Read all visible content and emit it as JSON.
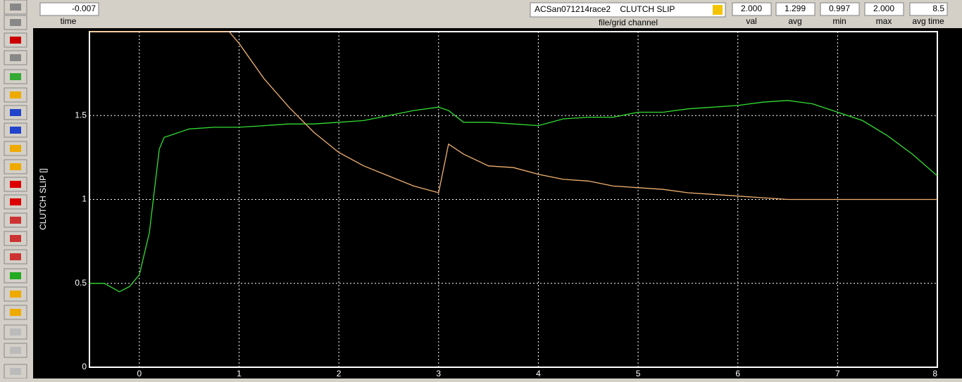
{
  "header": {
    "time": {
      "value": "-0.007",
      "label": "time"
    },
    "channel": {
      "value": "ACSan071214race2    CLUTCH SLIP",
      "label": "file/grid channel"
    },
    "val": {
      "value": "2.000",
      "label": "val"
    },
    "avg": {
      "value": "1.299",
      "label": "avg"
    },
    "min": {
      "value": "0.997",
      "label": "min"
    },
    "max": {
      "value": "2.000",
      "label": "max"
    },
    "avg_time": {
      "value": "8.5",
      "label": "avg time"
    }
  },
  "chart_data": {
    "type": "line",
    "y_label": "CLUTCH SLIP []",
    "xlim": [
      -0.5,
      8
    ],
    "ylim": [
      0,
      2
    ],
    "xticks": [
      0,
      1,
      2,
      3,
      4,
      5,
      6,
      7,
      8
    ],
    "yticks": [
      0,
      0.5,
      1,
      1.5
    ],
    "grid": true,
    "series": [
      {
        "color": "#33dd33",
        "x": [
          -0.5,
          -0.35,
          -0.2,
          -0.1,
          0,
          0.1,
          0.15,
          0.2,
          0.25,
          0.5,
          0.75,
          1,
          1.25,
          1.5,
          1.75,
          2,
          2.25,
          2.5,
          2.75,
          3,
          3.1,
          3.25,
          3.5,
          3.75,
          4,
          4.25,
          4.5,
          4.75,
          5,
          5.25,
          5.5,
          5.75,
          6,
          6.25,
          6.5,
          6.75,
          7,
          7.25,
          7.5,
          7.75,
          8
        ],
        "values": [
          0.5,
          0.5,
          0.45,
          0.48,
          0.55,
          0.8,
          1.05,
          1.3,
          1.37,
          1.42,
          1.43,
          1.43,
          1.44,
          1.45,
          1.45,
          1.46,
          1.47,
          1.5,
          1.53,
          1.55,
          1.53,
          1.46,
          1.46,
          1.45,
          1.44,
          1.48,
          1.49,
          1.49,
          1.52,
          1.52,
          1.54,
          1.55,
          1.56,
          1.58,
          1.59,
          1.57,
          1.52,
          1.47,
          1.38,
          1.27,
          1.14
        ]
      },
      {
        "color": "#f0b070",
        "x": [
          -0.5,
          0.9,
          1,
          1.25,
          1.5,
          1.75,
          2,
          2.25,
          2.5,
          2.75,
          3,
          3.1,
          3.25,
          3.5,
          3.75,
          4,
          4.25,
          4.5,
          4.75,
          5,
          5.25,
          5.5,
          5.75,
          6,
          6.25,
          6.5,
          7,
          7.5,
          8
        ],
        "values": [
          2,
          2,
          1.93,
          1.72,
          1.55,
          1.4,
          1.28,
          1.2,
          1.14,
          1.08,
          1.04,
          1.33,
          1.27,
          1.2,
          1.19,
          1.15,
          1.12,
          1.11,
          1.08,
          1.07,
          1.06,
          1.04,
          1.03,
          1.02,
          1.01,
          1,
          1,
          1,
          1
        ]
      }
    ]
  }
}
